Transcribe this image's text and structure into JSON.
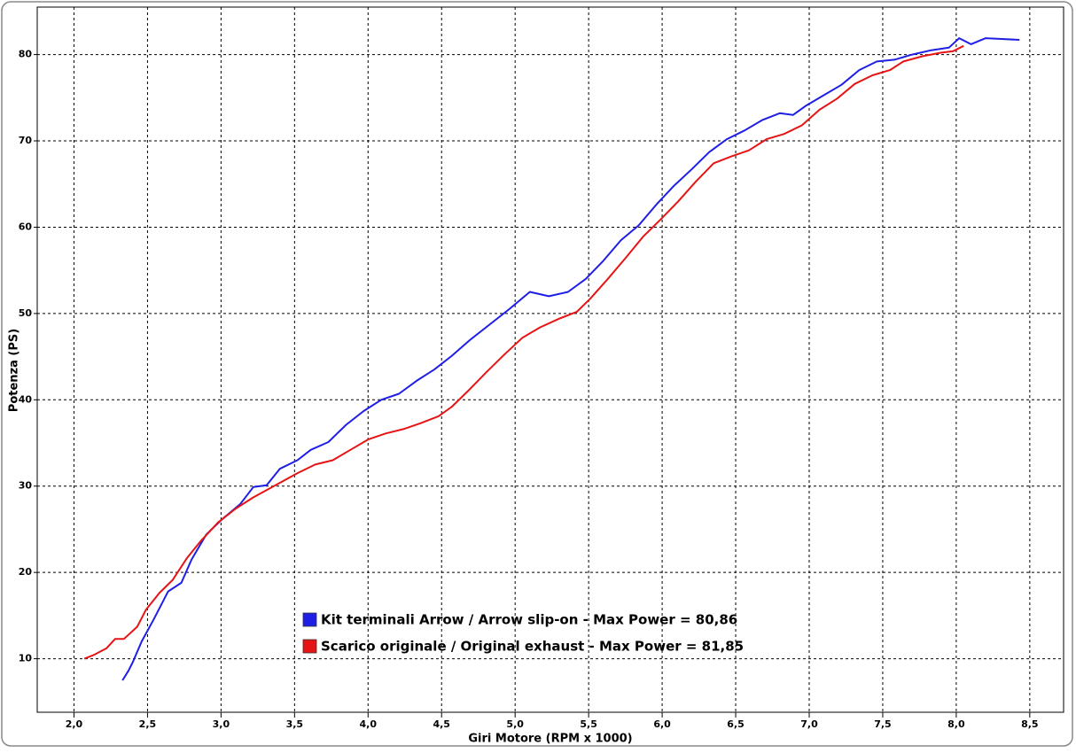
{
  "chart_data": {
    "type": "line",
    "xlabel": "Giri Motore (RPM x 1000)",
    "ylabel": "Potenza (PS)",
    "xlim": [
      1.75,
      8.73
    ],
    "ylim": [
      3.8,
      85.5
    ],
    "xticks": [
      {
        "value": 2.0,
        "label": "2,0"
      },
      {
        "value": 2.5,
        "label": "2,5"
      },
      {
        "value": 3.0,
        "label": "3,0"
      },
      {
        "value": 3.5,
        "label": "3,5"
      },
      {
        "value": 4.0,
        "label": "4,0"
      },
      {
        "value": 4.5,
        "label": "4,5"
      },
      {
        "value": 5.0,
        "label": "5,0"
      },
      {
        "value": 5.5,
        "label": "5,5"
      },
      {
        "value": 6.0,
        "label": "6,0"
      },
      {
        "value": 6.5,
        "label": "6,5"
      },
      {
        "value": 7.0,
        "label": "7,0"
      },
      {
        "value": 7.5,
        "label": "7,5"
      },
      {
        "value": 8.0,
        "label": "8,0"
      },
      {
        "value": 8.5,
        "label": "8,5"
      }
    ],
    "yticks": [
      10,
      20,
      30,
      40,
      50,
      60,
      70,
      80
    ],
    "grid": true,
    "series": [
      {
        "name": "Kit terminali Arrow / Arrow slip-on - Max Power = 80,86",
        "color": "#1e1ee6",
        "x": [
          2.33,
          2.37,
          2.4,
          2.46,
          2.54,
          2.64,
          2.73,
          2.8,
          2.9,
          3.01,
          3.13,
          3.22,
          3.31,
          3.4,
          3.52,
          3.61,
          3.73,
          3.85,
          3.97,
          4.09,
          4.21,
          4.33,
          4.45,
          4.57,
          4.69,
          4.84,
          4.96,
          5.1,
          5.23,
          5.36,
          5.48,
          5.6,
          5.72,
          5.84,
          5.96,
          6.08,
          6.2,
          6.32,
          6.44,
          6.56,
          6.68,
          6.8,
          6.89,
          6.98,
          7.1,
          7.22,
          7.34,
          7.46,
          7.58,
          7.7,
          7.83,
          7.95,
          8.02,
          8.1,
          8.2,
          8.31,
          8.43
        ],
        "values": [
          7.5,
          8.6,
          9.6,
          12.0,
          14.5,
          17.8,
          18.8,
          21.5,
          24.4,
          26.2,
          27.9,
          29.9,
          30.1,
          32.0,
          33.0,
          34.2,
          35.1,
          37.1,
          38.7,
          40.0,
          40.7,
          42.2,
          43.5,
          45.1,
          46.9,
          48.9,
          50.5,
          52.5,
          52.0,
          52.5,
          54.0,
          56.1,
          58.5,
          60.2,
          62.6,
          64.8,
          66.7,
          68.7,
          70.2,
          71.2,
          72.4,
          73.2,
          73.0,
          74.1,
          75.3,
          76.5,
          78.2,
          79.2,
          79.4,
          80.0,
          80.5,
          80.8,
          81.9,
          81.2,
          81.9,
          81.8,
          81.7
        ]
      },
      {
        "name": "Scarico originale / Original exhaust - Max Power = 81,85",
        "color": "#e61414",
        "x": [
          2.07,
          2.13,
          2.22,
          2.28,
          2.34,
          2.43,
          2.49,
          2.58,
          2.67,
          2.77,
          2.86,
          2.98,
          3.1,
          3.22,
          3.37,
          3.52,
          3.64,
          3.76,
          3.88,
          4.0,
          4.12,
          4.24,
          4.36,
          4.48,
          4.57,
          4.69,
          4.81,
          4.93,
          5.05,
          5.17,
          5.3,
          5.42,
          5.51,
          5.63,
          5.75,
          5.87,
          5.99,
          6.11,
          6.23,
          6.35,
          6.47,
          6.59,
          6.71,
          6.83,
          6.95,
          7.07,
          7.19,
          7.31,
          7.43,
          7.55,
          7.64,
          7.77,
          7.89,
          7.98,
          8.05
        ],
        "values": [
          10.0,
          10.4,
          11.2,
          12.3,
          12.3,
          13.7,
          15.7,
          17.6,
          19.1,
          21.7,
          23.6,
          25.8,
          27.4,
          28.7,
          30.1,
          31.5,
          32.5,
          33.0,
          34.2,
          35.4,
          36.1,
          36.6,
          37.3,
          38.1,
          39.2,
          41.2,
          43.3,
          45.3,
          47.2,
          48.4,
          49.4,
          50.2,
          51.7,
          54.0,
          56.4,
          58.9,
          60.9,
          63.0,
          65.3,
          67.4,
          68.2,
          68.9,
          70.2,
          70.8,
          71.8,
          73.6,
          74.9,
          76.6,
          77.6,
          78.2,
          79.2,
          79.8,
          80.2,
          80.4,
          81.0
        ]
      }
    ]
  }
}
